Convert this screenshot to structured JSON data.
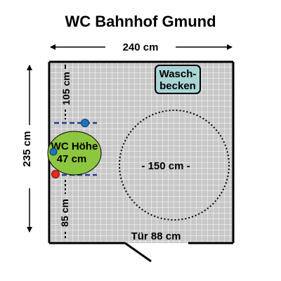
{
  "title": "WC Bahnhof Gmund",
  "dimensions": {
    "width_label": "240 cm",
    "height_label": "235 cm",
    "upper_offset_label": "105 cm",
    "lower_offset_label": "85 cm",
    "turning_circle_label": "150 cm",
    "door_label": "Tür 88 cm"
  },
  "fixtures": {
    "sink_line1": "Wasch-",
    "sink_line2": "becken",
    "wc_line1": "WC Höhe",
    "wc_line2": "47 cm"
  },
  "colors": {
    "floor_tiles": "#c8c8c8",
    "tile_lines": "#ffffff",
    "wall": "#000000",
    "sink_fill": "#a9d4d4",
    "wc_fill": "#8dc63f",
    "grab_bar": "#1f3a93",
    "blue_dot": "#1e73be",
    "red_dot": "#e8281e"
  }
}
